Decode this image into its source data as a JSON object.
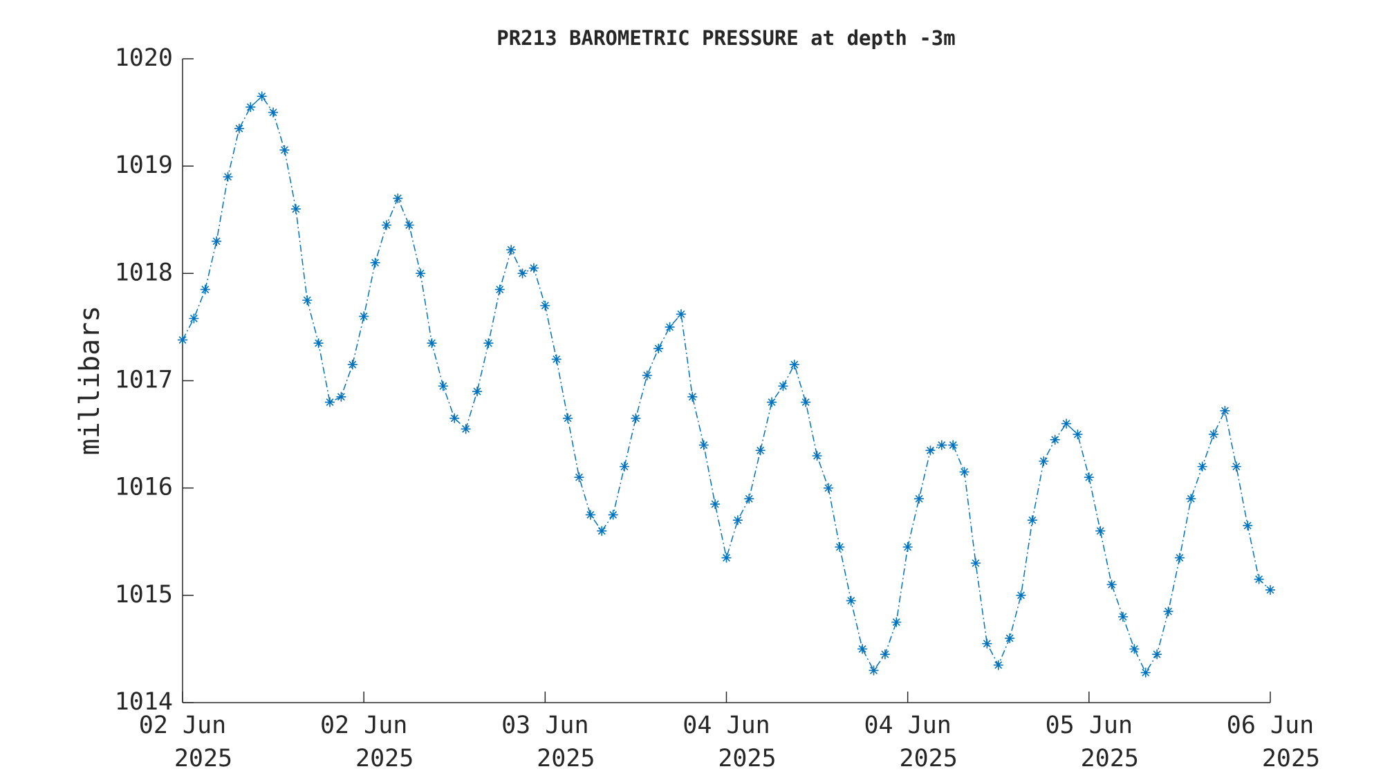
{
  "chart_data": {
    "type": "line",
    "title": "PR213 BAROMETRIC PRESSURE at depth -3m",
    "ylabel": "millibars",
    "x": [
      0,
      1,
      2,
      3,
      4,
      5,
      6,
      7,
      8,
      9,
      10,
      11,
      12,
      13,
      14,
      15,
      16,
      17,
      18,
      19,
      20,
      21,
      22,
      23,
      24,
      25,
      26,
      27,
      28,
      29,
      30,
      31,
      32,
      33,
      34,
      35,
      36,
      37,
      38,
      39,
      40,
      41,
      42,
      43,
      44,
      45,
      46,
      47,
      48,
      49,
      50,
      51,
      52,
      53,
      54,
      55,
      56,
      57,
      58,
      59,
      60,
      61,
      62,
      63,
      64,
      65,
      66,
      67,
      68,
      69,
      70,
      71,
      72,
      73,
      74,
      75,
      76,
      77,
      78,
      79,
      80,
      81,
      82,
      83,
      84,
      85,
      86,
      87,
      88,
      89,
      90,
      91,
      92,
      93,
      94,
      95,
      96
    ],
    "series": [
      {
        "name": "millibars",
        "color": "#0072bd",
        "values": [
          1017.38,
          1017.58,
          1017.85,
          1018.3,
          1018.9,
          1019.35,
          1019.55,
          1019.65,
          1019.5,
          1019.15,
          1018.6,
          1017.75,
          1017.35,
          1016.8,
          1016.85,
          1017.15,
          1017.6,
          1018.1,
          1018.45,
          1018.7,
          1018.45,
          1018.0,
          1017.35,
          1016.95,
          1016.65,
          1016.55,
          1016.9,
          1017.35,
          1017.85,
          1018.22,
          1018.0,
          1018.05,
          1017.7,
          1017.2,
          1016.65,
          1016.1,
          1015.75,
          1015.6,
          1015.75,
          1016.2,
          1016.65,
          1017.05,
          1017.3,
          1017.5,
          1017.62,
          1016.85,
          1016.4,
          1015.85,
          1015.35,
          1015.7,
          1015.9,
          1016.35,
          1016.8,
          1016.95,
          1017.15,
          1016.8,
          1016.3,
          1016.0,
          1015.45,
          1014.95,
          1014.5,
          1014.3,
          1014.45,
          1014.75,
          1015.45,
          1015.9,
          1016.35,
          1016.4,
          1016.4,
          1016.15,
          1015.3,
          1014.55,
          1014.35,
          1014.6,
          1015.0,
          1015.7,
          1016.25,
          1016.45,
          1016.6,
          1016.5,
          1016.1,
          1015.6,
          1015.1,
          1014.8,
          1014.5,
          1014.28,
          1014.45,
          1014.85,
          1015.35,
          1015.9,
          1016.2,
          1016.5,
          1016.72,
          1016.2,
          1015.65,
          1015.15,
          1015.05
        ]
      }
    ],
    "xlim": [
      0,
      96
    ],
    "xticks": [
      {
        "value": 0,
        "label": "02 Jun 2025"
      },
      {
        "value": 16,
        "label": "02 Jun 2025"
      },
      {
        "value": 32,
        "label": "03 Jun 2025"
      },
      {
        "value": 48,
        "label": "04 Jun 2025"
      },
      {
        "value": 64,
        "label": "04 Jun 2025"
      },
      {
        "value": 80,
        "label": "05 Jun 2025"
      },
      {
        "value": 96,
        "label": "06 Jun 2025"
      }
    ],
    "ylim": [
      1014,
      1020
    ],
    "yticks": [
      1014,
      1015,
      1016,
      1017,
      1018,
      1019,
      1020
    ],
    "grid": false
  }
}
